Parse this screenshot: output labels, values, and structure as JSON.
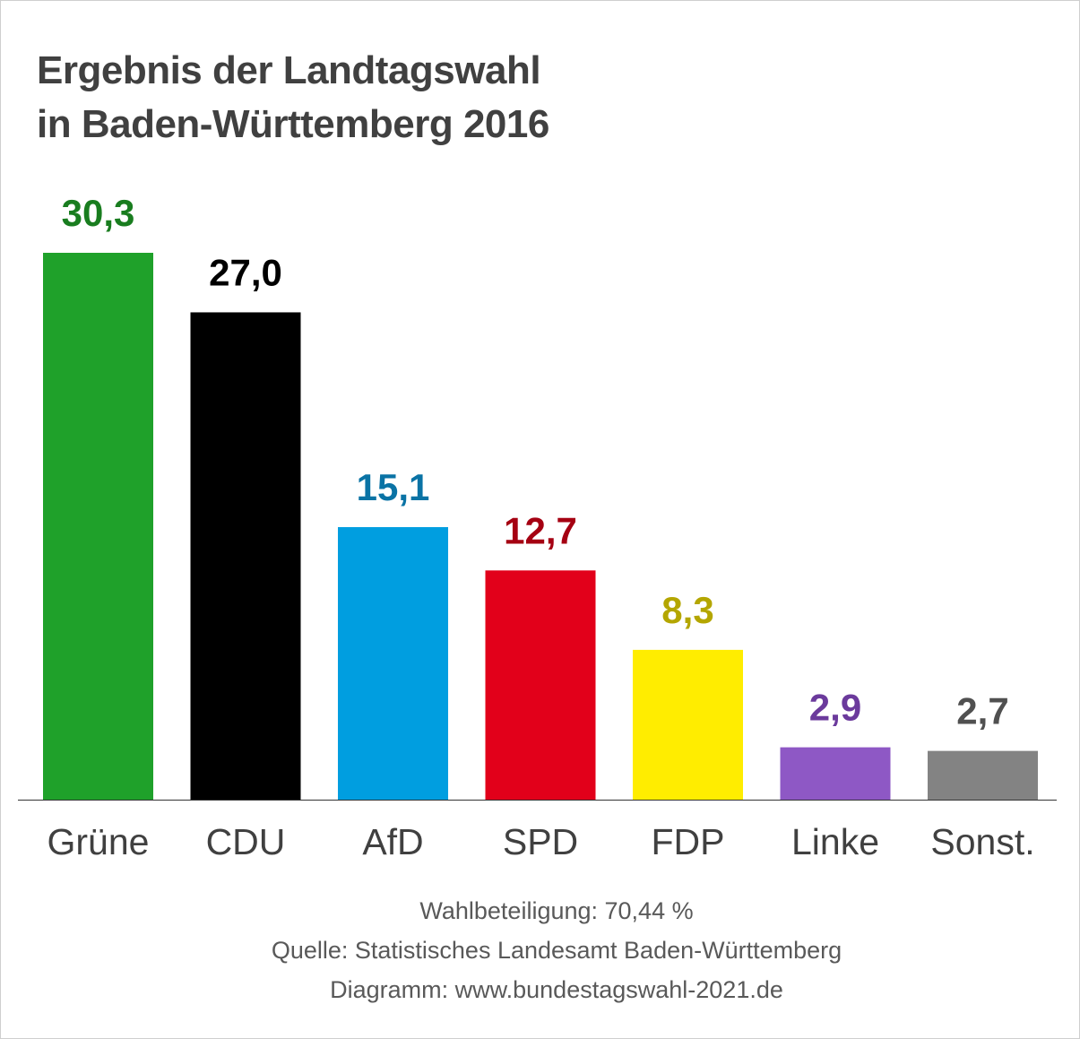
{
  "title_line1": "Ergebnis der Landtagswahl",
  "title_line2": "in Baden-Württemberg 2016",
  "chart_data": {
    "type": "bar",
    "categories": [
      "Grüne",
      "CDU",
      "AfD",
      "SPD",
      "FDP",
      "Linke",
      "Sonst."
    ],
    "values": [
      30.3,
      27.0,
      15.1,
      12.7,
      8.3,
      2.9,
      2.7
    ],
    "value_labels": [
      "30,3",
      "27,0",
      "15,1",
      "12,7",
      "8,3",
      "2,9",
      "2,7"
    ],
    "bar_colors": [
      "#1fa12a",
      "#000000",
      "#009ee0",
      "#e2001a",
      "#ffed00",
      "#8e58c5",
      "#838383"
    ],
    "label_colors": [
      "#197d1f",
      "#000000",
      "#0a73a5",
      "#a50012",
      "#b4a600",
      "#6b3a9c",
      "#505050"
    ],
    "ylim": [
      0,
      30.3
    ],
    "grid": false,
    "legend": "none"
  },
  "footer": {
    "turnout": "Wahlbeteiligung: 70,44 %",
    "source": "Quelle: Statistisches Landesamt Baden-Württemberg",
    "credit": "Diagramm: www.bundestagswahl-2021.de"
  }
}
